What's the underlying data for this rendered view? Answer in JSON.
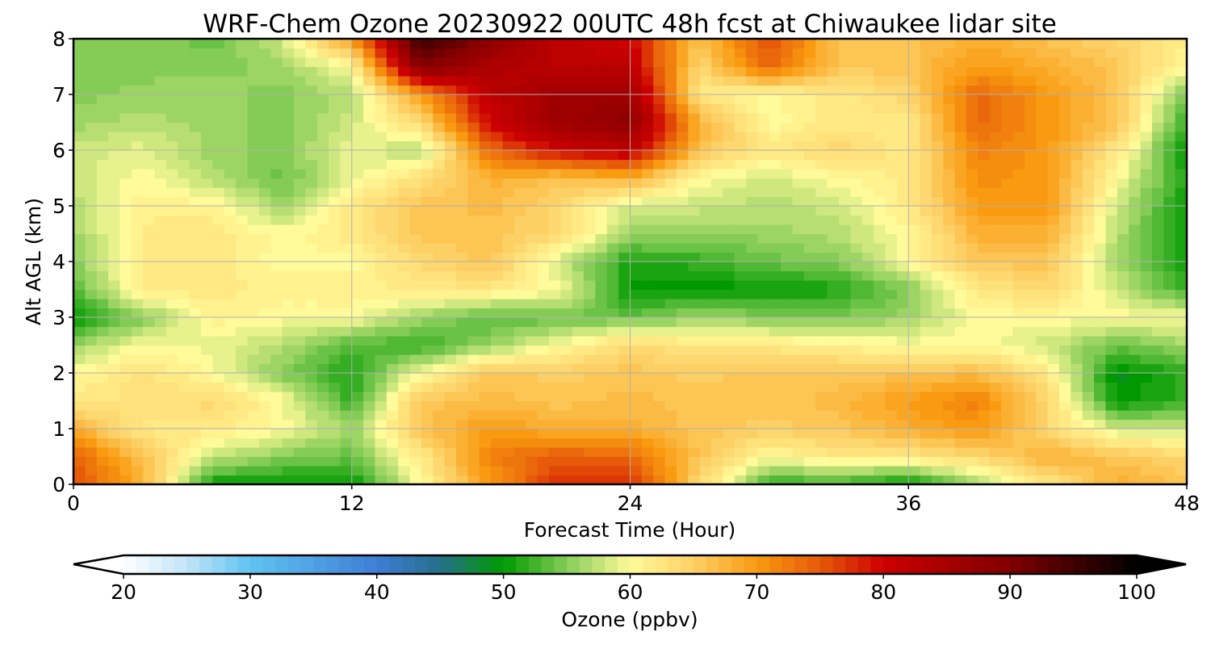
{
  "chart_data": {
    "type": "heatmap",
    "title": "WRF-Chem Ozone  20230922 00UTC 48h fcst at Chiwaukee lidar site",
    "xlabel": "Forecast Time (Hour)",
    "ylabel": "Alt AGL (km)",
    "xlim": [
      0,
      48
    ],
    "ylim": [
      0,
      8
    ],
    "x_ticks": [
      "0",
      "12",
      "24",
      "36",
      "48"
    ],
    "y_ticks": [
      "0",
      "1",
      "2",
      "3",
      "4",
      "5",
      "6",
      "7",
      "8"
    ],
    "grid": true,
    "x": [
      0,
      3,
      6,
      9,
      12,
      15,
      18,
      21,
      24,
      27,
      30,
      33,
      36,
      39,
      42,
      45,
      48
    ],
    "y": [
      0,
      0.5,
      1,
      1.5,
      2,
      2.5,
      3,
      3.5,
      4,
      4.5,
      5,
      5.5,
      6,
      6.5,
      7,
      7.5,
      8
    ],
    "z": [
      [
        76,
        68,
        50,
        50,
        50,
        60,
        70,
        78,
        78,
        64,
        52,
        52,
        50,
        56,
        62,
        68,
        66
      ],
      [
        75,
        66,
        58,
        55,
        54,
        62,
        72,
        75,
        74,
        66,
        60,
        62,
        62,
        64,
        68,
        66,
        64
      ],
      [
        68,
        62,
        62,
        60,
        56,
        66,
        70,
        68,
        68,
        66,
        65,
        66,
        68,
        70,
        64,
        58,
        58
      ],
      [
        62,
        63,
        64,
        60,
        52,
        66,
        67,
        66,
        67,
        66,
        66,
        67,
        70,
        72,
        64,
        50,
        52
      ],
      [
        60,
        63,
        60,
        55,
        51,
        60,
        66,
        65,
        66,
        65,
        66,
        66,
        66,
        67,
        62,
        49,
        52
      ],
      [
        56,
        60,
        59,
        57,
        53,
        52,
        56,
        60,
        64,
        62,
        62,
        61,
        60,
        60,
        58,
        54,
        56
      ],
      [
        50,
        55,
        61,
        60,
        60,
        56,
        53,
        54,
        54,
        56,
        55,
        55,
        56,
        60,
        60,
        60,
        60
      ],
      [
        53,
        62,
        62,
        61,
        61,
        62,
        62,
        60,
        50,
        50,
        50,
        51,
        55,
        62,
        64,
        58,
        52
      ],
      [
        55,
        62,
        62,
        60,
        60,
        64,
        66,
        58,
        51,
        52,
        54,
        55,
        60,
        66,
        66,
        56,
        50
      ],
      [
        56,
        62,
        62,
        60,
        62,
        66,
        66,
        64,
        56,
        55,
        56,
        57,
        60,
        68,
        68,
        57,
        50
      ],
      [
        57,
        61,
        61,
        56,
        62,
        66,
        67,
        64,
        58,
        58,
        57,
        58,
        62,
        70,
        70,
        58,
        50
      ],
      [
        58,
        60,
        57,
        54,
        59,
        63,
        68,
        66,
        68,
        60,
        58,
        60,
        62,
        71,
        70,
        60,
        51
      ],
      [
        58,
        59,
        56,
        55,
        59,
        57,
        74,
        80,
        82,
        66,
        62,
        64,
        62,
        72,
        70,
        62,
        50
      ],
      [
        56,
        57,
        56,
        55,
        58,
        64,
        80,
        86,
        88,
        68,
        60,
        62,
        62,
        74,
        70,
        66,
        52
      ],
      [
        55,
        56,
        56,
        55,
        57,
        70,
        82,
        86,
        86,
        62,
        60,
        62,
        64,
        74,
        70,
        66,
        54
      ],
      [
        55,
        55,
        55,
        56,
        60,
        90,
        84,
        82,
        82,
        64,
        74,
        66,
        66,
        70,
        68,
        66,
        60
      ],
      [
        55,
        55,
        54,
        58,
        70,
        96,
        88,
        82,
        80,
        66,
        76,
        66,
        66,
        68,
        66,
        64,
        62
      ]
    ],
    "colorbar": {
      "label": "Ozone  (ppbv)",
      "ticks": [
        "20",
        "30",
        "40",
        "50",
        "60",
        "70",
        "80",
        "90",
        "100"
      ],
      "range": [
        20,
        100
      ],
      "extend": "both",
      "stops": [
        {
          "value": 20,
          "color": "#ffffff"
        },
        {
          "value": 25,
          "color": "#c2e4f8"
        },
        {
          "value": 30,
          "color": "#5fc3f1"
        },
        {
          "value": 40,
          "color": "#3f7dd6"
        },
        {
          "value": 45,
          "color": "#256f8a"
        },
        {
          "value": 50,
          "color": "#009a00"
        },
        {
          "value": 55,
          "color": "#85cc57"
        },
        {
          "value": 60,
          "color": "#fffa9a"
        },
        {
          "value": 65,
          "color": "#fdd065"
        },
        {
          "value": 70,
          "color": "#f99a10"
        },
        {
          "value": 75,
          "color": "#e65a0a"
        },
        {
          "value": 80,
          "color": "#cc0000"
        },
        {
          "value": 90,
          "color": "#800000"
        },
        {
          "value": 100,
          "color": "#000000"
        }
      ]
    }
  }
}
